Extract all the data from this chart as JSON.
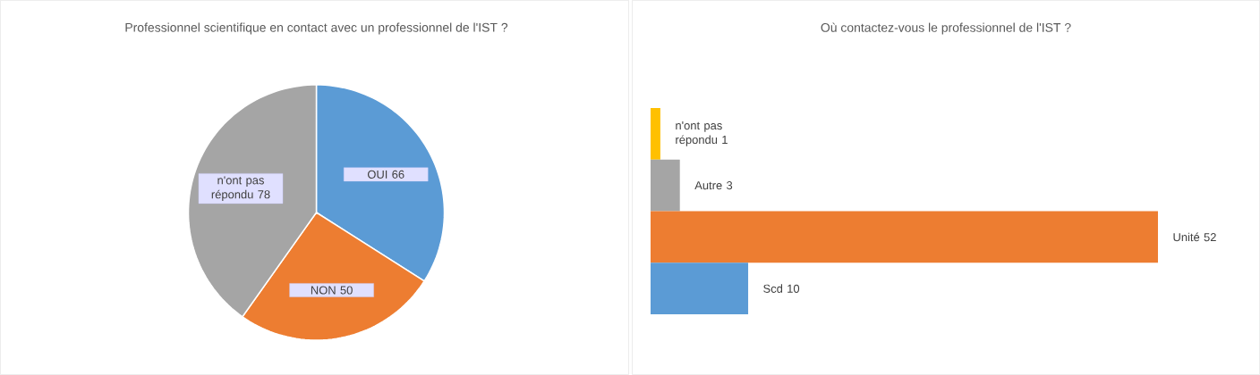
{
  "chart_data": [
    {
      "type": "pie",
      "title": "Professionnel scientifique  en contact  avec un professionnel  de l'IST ?",
      "categories": [
        "OUI",
        "NON",
        "n'ont pas répondu"
      ],
      "values": [
        66,
        50,
        78
      ],
      "colors": [
        "#5b9bd5",
        "#ed7d31",
        "#a5a5a5"
      ],
      "data_labels": true
    },
    {
      "type": "bar",
      "orientation": "horizontal",
      "title": "Où contactez-vous  le professionnel  de l'IST ?",
      "categories": [
        null,
        null,
        null,
        null
      ],
      "values": [
        1,
        3,
        52,
        10
      ],
      "value_labels": [
        "n'ont pas répondu 1",
        "Autre 3",
        "Unité 52",
        "Scd 10"
      ],
      "colors": [
        "#ffc000",
        "#a5a5a5",
        "#ed7d31",
        "#5b9bd5"
      ]
    }
  ]
}
